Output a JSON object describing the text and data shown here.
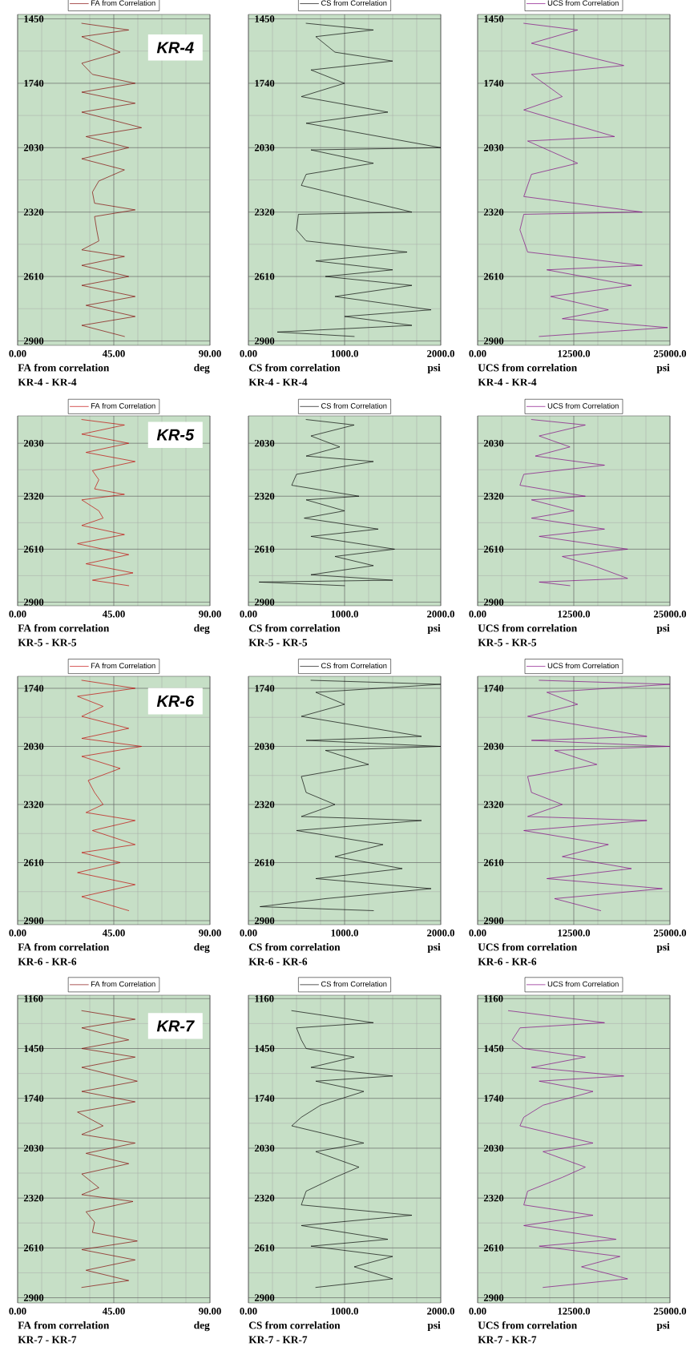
{
  "chart_data": [
    {
      "type": "line",
      "xlabel": "FA from correlation",
      "xlim": [
        0,
        90
      ],
      "xticks": [
        {
          "value": 0,
          "label": "0.00"
        },
        {
          "value": 45,
          "label": "45.00"
        },
        {
          "value": 90,
          "label": "90.00"
        }
      ],
      "ylim": [
        2920,
        1430
      ],
      "yticks": [
        1450,
        1740,
        2030,
        2320,
        2610,
        2900
      ],
      "grid": true,
      "legend": "top",
      "annotations": [
        "deg",
        "KR-4 - KR-4",
        "KR-4"
      ],
      "series": [
        {
          "name": "FA from Correlation",
          "color": "#800000",
          "x": [
            30,
            52,
            30,
            48,
            30,
            35,
            55,
            30,
            55,
            30,
            58,
            32,
            52,
            30,
            50,
            38,
            35,
            36,
            55,
            36,
            37,
            38,
            30,
            50,
            30,
            52,
            30,
            55,
            32,
            55,
            30,
            50
          ],
          "values": [
            1470,
            1500,
            1530,
            1600,
            1650,
            1700,
            1740,
            1780,
            1830,
            1870,
            1940,
            1980,
            2030,
            2080,
            2130,
            2180,
            2230,
            2280,
            2310,
            2340,
            2400,
            2450,
            2490,
            2520,
            2560,
            2610,
            2650,
            2700,
            2740,
            2790,
            2830,
            2880
          ]
        }
      ]
    },
    {
      "type": "line",
      "xlabel": "CS from correlation",
      "xlim": [
        0,
        2000
      ],
      "xticks": [
        {
          "value": 0,
          "label": "0.00"
        },
        {
          "value": 1000,
          "label": "1000.0"
        },
        {
          "value": 2000,
          "label": "2000.0"
        }
      ],
      "ylim": [
        2920,
        1430
      ],
      "yticks": [
        1450,
        1740,
        2030,
        2320,
        2610,
        2900
      ],
      "grid": true,
      "legend": "top",
      "annotations": [
        "psi",
        "KR-4 - KR-4"
      ],
      "series": [
        {
          "name": "CS from Correlation",
          "color": "#000000",
          "x": [
            600,
            1300,
            700,
            900,
            1500,
            650,
            1000,
            550,
            1450,
            600,
            2000,
            650,
            1300,
            600,
            550,
            1700,
            520,
            500,
            600,
            1650,
            700,
            1500,
            800,
            1700,
            900,
            1900,
            1000,
            1700,
            300,
            1100
          ],
          "values": [
            1470,
            1500,
            1530,
            1600,
            1640,
            1680,
            1740,
            1800,
            1870,
            1920,
            2030,
            2040,
            2100,
            2150,
            2200,
            2320,
            2330,
            2400,
            2450,
            2500,
            2540,
            2580,
            2610,
            2650,
            2700,
            2760,
            2790,
            2830,
            2860,
            2880
          ]
        }
      ]
    },
    {
      "type": "line",
      "xlabel": "UCS from correlation",
      "xlim": [
        0,
        25000
      ],
      "xticks": [
        {
          "value": 0,
          "label": "0.00"
        },
        {
          "value": 12500,
          "label": "12500.0"
        },
        {
          "value": 25000,
          "label": "25000.0"
        }
      ],
      "ylim": [
        2920,
        1430
      ],
      "yticks": [
        1450,
        1740,
        2030,
        2320,
        2610,
        2900
      ],
      "grid": true,
      "legend": "top",
      "annotations": [
        "psi",
        "KR-4 - KR-4"
      ],
      "series": [
        {
          "name": "UCS from Correlation",
          "color": "#800080",
          "x": [
            6000,
            13000,
            7000,
            19000,
            7000,
            11000,
            6000,
            17800,
            6500,
            13000,
            7000,
            6000,
            21400,
            6000,
            5500,
            6500,
            21400,
            9000,
            20000,
            9500,
            17000,
            11000,
            24700,
            8000
          ],
          "values": [
            1470,
            1500,
            1560,
            1660,
            1700,
            1800,
            1860,
            1980,
            2000,
            2100,
            2150,
            2250,
            2320,
            2330,
            2400,
            2500,
            2560,
            2580,
            2650,
            2700,
            2760,
            2800,
            2840,
            2880
          ]
        }
      ]
    },
    {
      "type": "line",
      "xlabel": "FA from correlation",
      "xlim": [
        0,
        90
      ],
      "xticks": [
        {
          "value": 0,
          "label": "0.00"
        },
        {
          "value": 45,
          "label": "45.00"
        },
        {
          "value": 90,
          "label": "90.00"
        }
      ],
      "ylim": [
        2920,
        1880
      ],
      "yticks": [
        2030,
        2320,
        2610,
        2900
      ],
      "grid": true,
      "legend": "top",
      "annotations": [
        "deg",
        "KR-5 - KR-5",
        "KR-5"
      ],
      "series": [
        {
          "name": "FA from Correlation",
          "color": "#c00000",
          "x": [
            30,
            50,
            30,
            52,
            32,
            55,
            35,
            38,
            36,
            50,
            30,
            38,
            40,
            30,
            50,
            28,
            52,
            32,
            54,
            35,
            52
          ],
          "values": [
            1900,
            1930,
            1980,
            2030,
            2080,
            2130,
            2180,
            2230,
            2280,
            2310,
            2340,
            2400,
            2440,
            2480,
            2530,
            2580,
            2640,
            2690,
            2740,
            2780,
            2810
          ]
        }
      ]
    },
    {
      "type": "line",
      "xlabel": "CS from correlation",
      "xlim": [
        0,
        2000
      ],
      "xticks": [
        {
          "value": 0,
          "label": "0.00"
        },
        {
          "value": 1000,
          "label": "1000.0"
        },
        {
          "value": 2000,
          "label": "2000.0"
        }
      ],
      "ylim": [
        2920,
        1880
      ],
      "yticks": [
        2030,
        2320,
        2610,
        2900
      ],
      "grid": true,
      "legend": "top",
      "annotations": [
        "psi",
        "KR-5 - KR-5"
      ],
      "series": [
        {
          "name": "CS from Correlation",
          "color": "#000000",
          "x": [
            600,
            1100,
            650,
            950,
            600,
            1300,
            500,
            450,
            1150,
            600,
            1000,
            580,
            1350,
            650,
            1520,
            900,
            1300,
            650,
            1500,
            110,
            1000
          ],
          "values": [
            1900,
            1930,
            1990,
            2050,
            2100,
            2130,
            2200,
            2260,
            2320,
            2340,
            2400,
            2440,
            2500,
            2540,
            2610,
            2650,
            2700,
            2750,
            2780,
            2790,
            2810
          ]
        }
      ]
    },
    {
      "type": "line",
      "xlabel": "UCS from correlation",
      "xlim": [
        0,
        25000
      ],
      "xticks": [
        {
          "value": 0,
          "label": "0.00"
        },
        {
          "value": 12500,
          "label": "12500.0"
        },
        {
          "value": 25000,
          "label": "25000.0"
        }
      ],
      "ylim": [
        2920,
        1880
      ],
      "yticks": [
        2030,
        2320,
        2610,
        2900
      ],
      "grid": true,
      "legend": "top",
      "annotations": [
        "psi",
        "KR-5 - KR-5"
      ],
      "series": [
        {
          "name": "UCS from Correlation",
          "color": "#800080",
          "x": [
            7000,
            14000,
            8000,
            12000,
            7500,
            16500,
            6000,
            5500,
            14000,
            7000,
            12500,
            7000,
            16500,
            8000,
            19500,
            11000,
            15000,
            19500,
            8000,
            12000
          ],
          "values": [
            1900,
            1930,
            1990,
            2050,
            2100,
            2150,
            2200,
            2260,
            2320,
            2340,
            2400,
            2440,
            2500,
            2540,
            2610,
            2650,
            2700,
            2770,
            2790,
            2810
          ]
        }
      ]
    },
    {
      "type": "line",
      "xlabel": "FA from correlation",
      "xlim": [
        0,
        90
      ],
      "xticks": [
        {
          "value": 0,
          "label": "0.00"
        },
        {
          "value": 45,
          "label": "45.00"
        },
        {
          "value": 90,
          "label": "90.00"
        }
      ],
      "ylim": [
        2920,
        1680
      ],
      "yticks": [
        1740,
        2030,
        2320,
        2610,
        2900
      ],
      "grid": true,
      "legend": "top",
      "annotations": [
        "deg",
        "KR-6 - KR-6",
        "KR-6"
      ],
      "series": [
        {
          "name": "FA from Correlation",
          "color": "#c00000",
          "x": [
            30,
            55,
            28,
            40,
            30,
            52,
            30,
            58,
            30,
            48,
            33,
            36,
            40,
            32,
            55,
            35,
            55,
            30,
            48,
            28,
            55,
            30,
            52
          ],
          "values": [
            1700,
            1740,
            1780,
            1830,
            1880,
            1940,
            1990,
            2030,
            2080,
            2140,
            2200,
            2260,
            2320,
            2360,
            2400,
            2450,
            2520,
            2560,
            2610,
            2660,
            2720,
            2780,
            2850
          ]
        }
      ]
    },
    {
      "type": "line",
      "xlabel": "CS from correlation",
      "xlim": [
        0,
        2000
      ],
      "xticks": [
        {
          "value": 0,
          "label": "0.00"
        },
        {
          "value": 1000,
          "label": "1000.0"
        },
        {
          "value": 2000,
          "label": "2000.0"
        }
      ],
      "ylim": [
        2920,
        1680
      ],
      "yticks": [
        1740,
        2030,
        2320,
        2610,
        2900
      ],
      "grid": true,
      "legend": "top",
      "annotations": [
        "psi",
        "KR-6 - KR-6"
      ],
      "series": [
        {
          "name": "CS from Correlation",
          "color": "#000000",
          "x": [
            650,
            2000,
            700,
            1000,
            550,
            1800,
            600,
            2000,
            800,
            1250,
            550,
            600,
            900,
            550,
            1800,
            500,
            1400,
            900,
            1600,
            700,
            1900,
            800,
            120,
            1300
          ],
          "values": [
            1700,
            1720,
            1760,
            1820,
            1880,
            1980,
            2000,
            2030,
            2050,
            2120,
            2180,
            2260,
            2320,
            2380,
            2400,
            2450,
            2520,
            2580,
            2640,
            2690,
            2740,
            2790,
            2830,
            2850
          ]
        }
      ]
    },
    {
      "type": "line",
      "xlabel": "UCS from correlation",
      "xlim": [
        0,
        25000
      ],
      "xticks": [
        {
          "value": 0,
          "label": "0.00"
        },
        {
          "value": 12500,
          "label": "12500.0"
        },
        {
          "value": 25000,
          "label": "25000.0"
        }
      ],
      "ylim": [
        2920,
        1680
      ],
      "yticks": [
        1740,
        2030,
        2320,
        2610,
        2900
      ],
      "grid": true,
      "legend": "top",
      "annotations": [
        "psi",
        "KR-6 - KR-6"
      ],
      "series": [
        {
          "name": "UCS from Correlation",
          "color": "#800080",
          "x": [
            8000,
            25000,
            9000,
            13000,
            6500,
            22000,
            7000,
            25000,
            10000,
            15500,
            6500,
            7000,
            11000,
            6500,
            22000,
            6000,
            17000,
            11000,
            20000,
            9000,
            24000,
            10000,
            16000
          ],
          "values": [
            1700,
            1720,
            1760,
            1820,
            1880,
            1980,
            2000,
            2030,
            2050,
            2120,
            2180,
            2260,
            2320,
            2380,
            2400,
            2450,
            2520,
            2580,
            2640,
            2690,
            2740,
            2790,
            2850
          ]
        }
      ]
    },
    {
      "type": "line",
      "xlabel": "FA from correlation",
      "xlim": [
        0,
        90
      ],
      "xticks": [
        {
          "value": 0,
          "label": "0.00"
        },
        {
          "value": 45,
          "label": "45.00"
        },
        {
          "value": 90,
          "label": "90.00"
        }
      ],
      "ylim": [
        2930,
        1140
      ],
      "yticks": [
        1160,
        1450,
        1740,
        2030,
        2320,
        2610,
        2900
      ],
      "grid": true,
      "legend": "top",
      "annotations": [
        "deg",
        "KR-7 - KR-7",
        "KR-7"
      ],
      "series": [
        {
          "name": "FA from Correlation",
          "color": "#800000",
          "x": [
            30,
            55,
            30,
            52,
            30,
            55,
            30,
            56,
            30,
            55,
            28,
            40,
            30,
            55,
            32,
            52,
            30,
            38,
            30,
            54,
            32,
            36,
            35,
            56,
            30,
            55,
            32,
            52,
            30
          ],
          "values": [
            1230,
            1280,
            1330,
            1400,
            1450,
            1500,
            1560,
            1640,
            1700,
            1760,
            1820,
            1900,
            1950,
            2000,
            2060,
            2120,
            2180,
            2260,
            2300,
            2340,
            2400,
            2460,
            2520,
            2570,
            2620,
            2680,
            2740,
            2800,
            2840
          ]
        }
      ]
    },
    {
      "type": "line",
      "xlabel": "CS from correlation",
      "xlim": [
        0,
        2000
      ],
      "xticks": [
        {
          "value": 0,
          "label": "0.00"
        },
        {
          "value": 1000,
          "label": "1000.0"
        },
        {
          "value": 2000,
          "label": "2000.0"
        }
      ],
      "ylim": [
        2930,
        1140
      ],
      "yticks": [
        1160,
        1450,
        1740,
        2030,
        2320,
        2610,
        2900
      ],
      "grid": true,
      "legend": "top",
      "annotations": [
        "psi",
        "KR-7 - KR-7"
      ],
      "series": [
        {
          "name": "CS from Correlation",
          "color": "#000000",
          "x": [
            450,
            1300,
            500,
            550,
            600,
            1100,
            650,
            1500,
            700,
            1200,
            750,
            550,
            450,
            1200,
            700,
            1150,
            900,
            600,
            550,
            1700,
            550,
            1450,
            650,
            1500,
            1100,
            1500,
            700
          ],
          "values": [
            1230,
            1300,
            1330,
            1400,
            1450,
            1500,
            1560,
            1610,
            1640,
            1700,
            1780,
            1850,
            1900,
            2000,
            2050,
            2140,
            2200,
            2280,
            2360,
            2420,
            2480,
            2560,
            2600,
            2660,
            2720,
            2790,
            2840
          ]
        }
      ]
    },
    {
      "type": "line",
      "xlabel": "UCS from correlation",
      "xlim": [
        0,
        25000
      ],
      "xticks": [
        {
          "value": 0,
          "label": "0.00"
        },
        {
          "value": 12500,
          "label": "12500.0"
        },
        {
          "value": 25000,
          "label": "25000.0"
        }
      ],
      "ylim": [
        2930,
        1140
      ],
      "yticks": [
        1160,
        1450,
        1740,
        2030,
        2320,
        2610,
        2900
      ],
      "grid": true,
      "legend": "top",
      "annotations": [
        "psi",
        "KR-7 - KR-7"
      ],
      "series": [
        {
          "name": "UCS from Correlation",
          "color": "#800080",
          "x": [
            4000,
            16500,
            5500,
            4500,
            6000,
            14000,
            7000,
            19000,
            8000,
            15000,
            8500,
            6000,
            5500,
            15000,
            8500,
            14000,
            11000,
            6500,
            6000,
            15000,
            6000,
            18000,
            8000,
            18500,
            13500,
            19500,
            8500
          ],
          "values": [
            1230,
            1300,
            1330,
            1400,
            1450,
            1500,
            1560,
            1610,
            1640,
            1700,
            1780,
            1850,
            1900,
            2000,
            2050,
            2140,
            2200,
            2280,
            2360,
            2420,
            2480,
            2560,
            2600,
            2660,
            2720,
            2790,
            2840
          ]
        }
      ]
    }
  ]
}
